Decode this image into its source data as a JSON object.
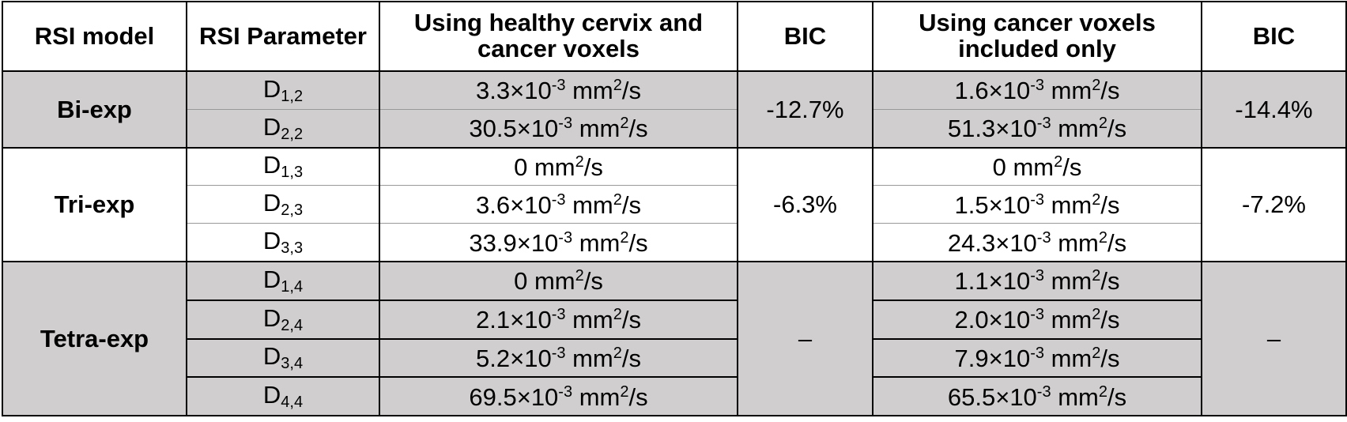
{
  "table": {
    "header": [
      "RSI model",
      "RSI Parameter",
      "Using healthy cervix and cancer voxels",
      "BIC",
      "Using cancer voxels included only",
      "BIC"
    ],
    "groups": [
      {
        "model": "Bi-exp",
        "bic1": "-12.7%",
        "bic2": "-14.4%",
        "shaded": true,
        "rows": [
          {
            "param": [
              {
                "t": "D"
              },
              {
                "sub": "1,2"
              }
            ],
            "v1": [
              {
                "t": "3.3×10"
              },
              {
                "sup": "-3"
              },
              {
                "t": " mm"
              },
              {
                "sup": "2"
              },
              {
                "t": "/s"
              }
            ],
            "v2": [
              {
                "t": "1.6×10"
              },
              {
                "sup": "-3"
              },
              {
                "t": " mm"
              },
              {
                "sup": "2"
              },
              {
                "t": "/s"
              }
            ]
          },
          {
            "param": [
              {
                "t": "D"
              },
              {
                "sub": "2,2"
              }
            ],
            "v1": [
              {
                "t": "30.5×10"
              },
              {
                "sup": "-3"
              },
              {
                "t": " mm"
              },
              {
                "sup": "2"
              },
              {
                "t": "/s"
              }
            ],
            "v2": [
              {
                "t": "51.3×10"
              },
              {
                "sup": "-3"
              },
              {
                "t": " mm"
              },
              {
                "sup": "2"
              },
              {
                "t": "/s"
              }
            ]
          }
        ]
      },
      {
        "model": "Tri-exp",
        "bic1": "-6.3%",
        "bic2": "-7.2%",
        "shaded": false,
        "rows": [
          {
            "param": [
              {
                "t": "D"
              },
              {
                "sub": "1,3"
              }
            ],
            "v1": [
              {
                "t": "0 mm"
              },
              {
                "sup": "2"
              },
              {
                "t": "/s"
              }
            ],
            "v2": [
              {
                "t": "0 mm"
              },
              {
                "sup": "2"
              },
              {
                "t": "/s"
              }
            ]
          },
          {
            "param": [
              {
                "t": "D"
              },
              {
                "sub": "2,3"
              }
            ],
            "v1": [
              {
                "t": "3.6×10"
              },
              {
                "sup": "-3"
              },
              {
                "t": " mm"
              },
              {
                "sup": "2"
              },
              {
                "t": "/s"
              }
            ],
            "v2": [
              {
                "t": "1.5×10"
              },
              {
                "sup": "-3"
              },
              {
                "t": " mm"
              },
              {
                "sup": "2"
              },
              {
                "t": "/s"
              }
            ]
          },
          {
            "param": [
              {
                "t": "D"
              },
              {
                "sub": "3,3"
              }
            ],
            "v1": [
              {
                "t": "33.9×10"
              },
              {
                "sup": "-3"
              },
              {
                "t": " mm"
              },
              {
                "sup": "2"
              },
              {
                "t": "/s"
              }
            ],
            "v2": [
              {
                "t": "24.3×10"
              },
              {
                "sup": "-3"
              },
              {
                "t": " mm"
              },
              {
                "sup": "2"
              },
              {
                "t": "/s"
              }
            ]
          }
        ]
      },
      {
        "model": "Tetra-exp",
        "bic1": "–",
        "bic2": "–",
        "shaded": true,
        "rows": [
          {
            "param": [
              {
                "t": "D"
              },
              {
                "sub": "1,4"
              }
            ],
            "v1": [
              {
                "t": "0 mm"
              },
              {
                "sup": "2"
              },
              {
                "t": "/s"
              }
            ],
            "v2": [
              {
                "t": "1.1×10"
              },
              {
                "sup": "-3"
              },
              {
                "t": " mm"
              },
              {
                "sup": "2"
              },
              {
                "t": "/s"
              }
            ]
          },
          {
            "param": [
              {
                "t": "D"
              },
              {
                "sub": "2,4"
              }
            ],
            "v1": [
              {
                "t": "2.1×10"
              },
              {
                "sup": "-3"
              },
              {
                "t": " mm"
              },
              {
                "sup": "2"
              },
              {
                "t": "/s"
              }
            ],
            "v2": [
              {
                "t": "2.0×10"
              },
              {
                "sup": "-3"
              },
              {
                "t": " mm"
              },
              {
                "sup": "2"
              },
              {
                "t": "/s"
              }
            ]
          },
          {
            "param": [
              {
                "t": "D"
              },
              {
                "sub": "3,4"
              }
            ],
            "v1": [
              {
                "t": "5.2×10"
              },
              {
                "sup": "-3"
              },
              {
                "t": " mm"
              },
              {
                "sup": "2"
              },
              {
                "t": "/s"
              }
            ],
            "v2": [
              {
                "t": "7.9×10"
              },
              {
                "sup": "-3"
              },
              {
                "t": " mm"
              },
              {
                "sup": "2"
              },
              {
                "t": "/s"
              }
            ]
          },
          {
            "param": [
              {
                "t": "D"
              },
              {
                "sub": "4,4"
              }
            ],
            "v1": [
              {
                "t": "69.5×10"
              },
              {
                "sup": "-3"
              },
              {
                "t": " mm"
              },
              {
                "sup": "2"
              },
              {
                "t": "/s"
              }
            ],
            "v2": [
              {
                "t": "65.5×10"
              },
              {
                "sup": "-3"
              },
              {
                "t": " mm"
              },
              {
                "sup": "2"
              },
              {
                "t": "/s"
              }
            ]
          }
        ]
      }
    ]
  }
}
